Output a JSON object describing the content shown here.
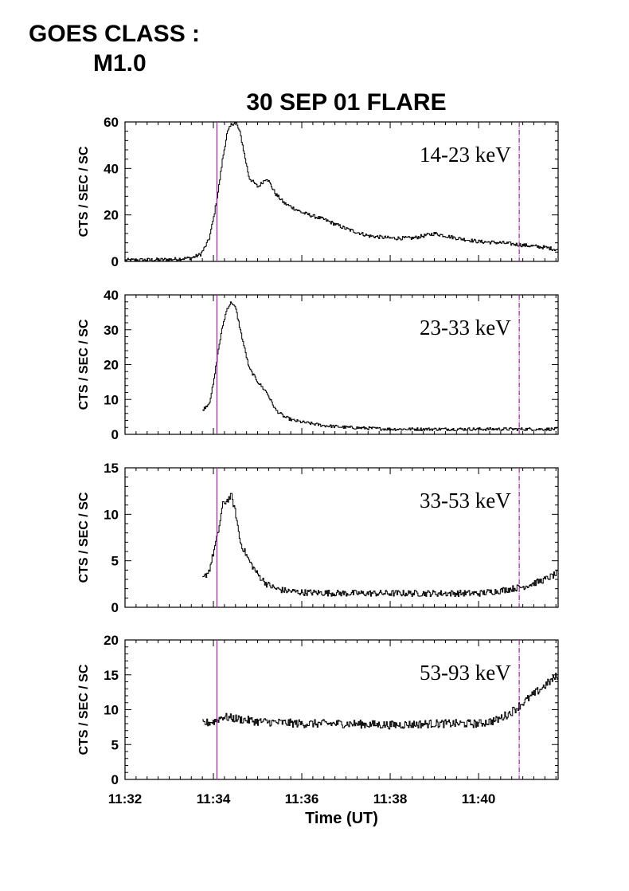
{
  "header": {
    "goes_label": "GOES CLASS :",
    "goes_value": "M1.0"
  },
  "chart_data": {
    "type": "line",
    "title": "30 SEP 01 FLARE",
    "xlabel": "Time (UT)",
    "x_units": "minutes after 11:32 UT",
    "xlim": [
      0,
      9.8
    ],
    "x_tick_labels": [
      "11:32",
      "11:34",
      "11:36",
      "11:38",
      "11:40"
    ],
    "markers_time_labels": [
      "11:34:05",
      "11:40:55"
    ],
    "markers_x": [
      2.08,
      8.92
    ],
    "marker_color": "#a020a0",
    "line_color": "#000000",
    "panels": [
      {
        "band": "14-23 keV",
        "ylabel": "CTS / SEC / SC",
        "ylim": [
          0,
          60
        ],
        "y_ticks": [
          0,
          20,
          40,
          60
        ],
        "x": [
          0,
          1.0,
          1.5,
          1.7,
          1.8,
          1.9,
          2.0,
          2.1,
          2.2,
          2.3,
          2.4,
          2.5,
          2.6,
          2.8,
          3.0,
          3.2,
          3.4,
          3.6,
          3.8,
          4.0,
          4.5,
          5.0,
          5.5,
          6.0,
          6.5,
          7.0,
          7.5,
          8.0,
          8.5,
          9.0,
          9.5,
          9.8
        ],
        "y": [
          0.5,
          0.8,
          1.5,
          3,
          6,
          10,
          19,
          30,
          44,
          55,
          59,
          60,
          55,
          36,
          32,
          36,
          29,
          25,
          23,
          21,
          18,
          14,
          11,
          10,
          10,
          12,
          10,
          8.5,
          8,
          7,
          6,
          5
        ],
        "noise": 0.8
      },
      {
        "band": "23-33 keV",
        "ylabel": "CTS / SEC / SC",
        "ylim": [
          0,
          40
        ],
        "y_ticks": [
          0,
          10,
          20,
          30,
          40
        ],
        "x": [
          1.75,
          1.9,
          2.0,
          2.1,
          2.2,
          2.3,
          2.4,
          2.5,
          2.6,
          2.8,
          3.0,
          3.2,
          3.4,
          3.6,
          3.8,
          4.0,
          4.5,
          5.0,
          6.0,
          7.0,
          8.0,
          9.0,
          9.8
        ],
        "y": [
          7,
          9,
          15,
          24,
          31,
          36,
          38,
          36,
          30,
          19,
          15,
          12,
          7,
          5,
          4,
          3.5,
          2.5,
          2,
          1.5,
          1.5,
          1.5,
          1.5,
          1.5
        ],
        "noise": 0.45
      },
      {
        "band": "33-53 keV",
        "ylabel": "CTS / SEC / SC",
        "ylim": [
          0,
          15
        ],
        "y_ticks": [
          0,
          5,
          10,
          15
        ],
        "x": [
          1.75,
          1.9,
          2.0,
          2.1,
          2.2,
          2.3,
          2.4,
          2.5,
          2.6,
          2.8,
          3.0,
          3.2,
          3.4,
          3.6,
          4.0,
          5.0,
          6.0,
          7.0,
          8.0,
          8.5,
          9.0,
          9.5,
          9.8
        ],
        "y": [
          3,
          4,
          6,
          8,
          11,
          11.5,
          12,
          10,
          7,
          5,
          3.5,
          2.5,
          2,
          1.8,
          1.6,
          1.5,
          1.5,
          1.5,
          1.5,
          1.8,
          2.2,
          3,
          3.7
        ],
        "noise": 0.35
      },
      {
        "band": "53-93 keV",
        "ylabel": "CTS / SEC / SC",
        "ylim": [
          0,
          20
        ],
        "y_ticks": [
          0,
          5,
          10,
          15,
          20
        ],
        "x": [
          1.75,
          2.0,
          2.2,
          2.4,
          3.0,
          4.0,
          5.0,
          6.0,
          7.0,
          8.0,
          8.4,
          8.7,
          9.0,
          9.3,
          9.6,
          9.8
        ],
        "y": [
          8,
          8.3,
          9,
          8.8,
          8.3,
          8,
          8,
          7.8,
          8,
          8,
          8.5,
          9.5,
          11,
          12.5,
          14,
          15
        ],
        "noise": 0.6
      }
    ]
  }
}
